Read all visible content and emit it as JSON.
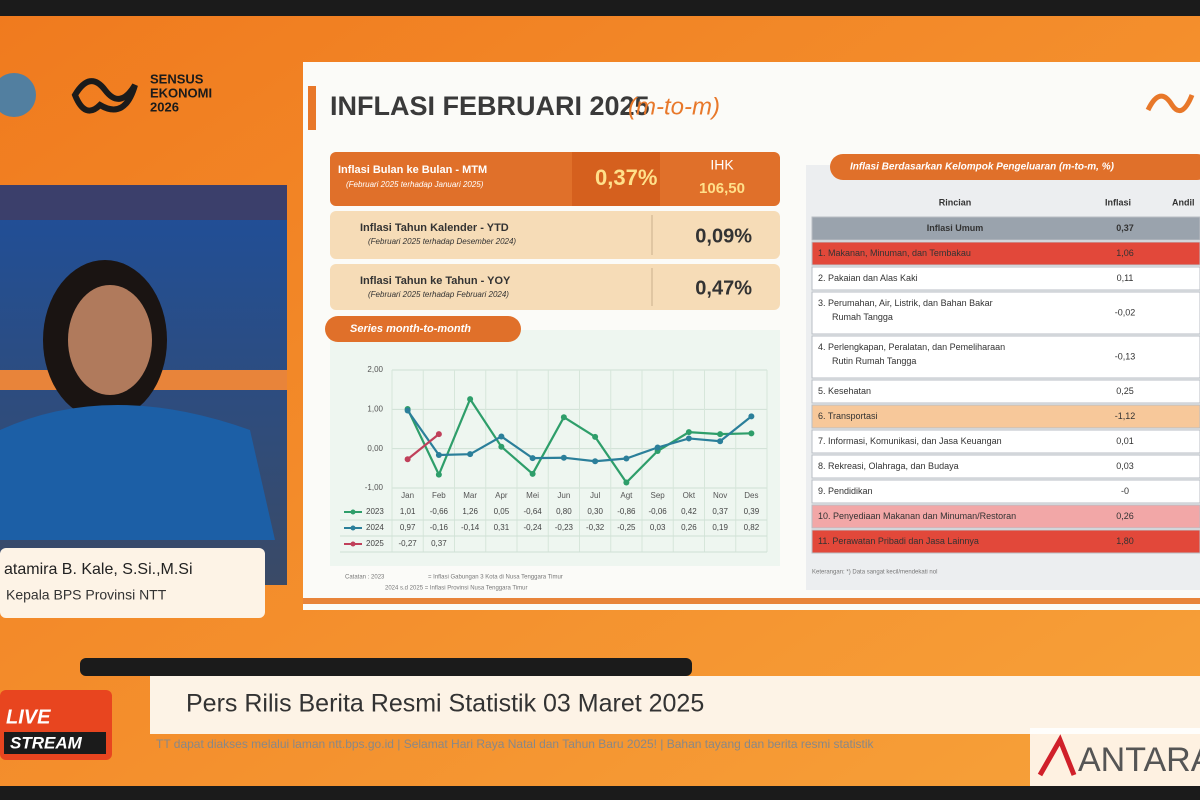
{
  "header": {
    "logo_lines": [
      "SENSUS",
      "EKONOMI",
      "2026"
    ]
  },
  "slide": {
    "title": "INFLASI FEBRUARI 2025",
    "title_suffix": "(m-to-m)",
    "summary": [
      {
        "label": "Inflasi Bulan ke Bulan - MTM",
        "period": "(Februari 2025 terhadap Januari 2025)",
        "value": "0,37%",
        "index_label": "IHK",
        "index_value": "106,50"
      },
      {
        "label": "Inflasi Tahun Kalender - YTD",
        "period": "(Februari 2025 terhadap Desember 2024)",
        "value": "0,09%"
      },
      {
        "label": "Inflasi Tahun ke Tahun - YOY",
        "period": "(Februari 2025 terhadap Februari 2024)",
        "value": "0,47%"
      }
    ],
    "chart": {
      "type": "line",
      "title": "Series month-to-month",
      "categories": [
        "Jan",
        "Feb",
        "Mar",
        "Apr",
        "Mei",
        "Jun",
        "Jul",
        "Agt",
        "Sep",
        "Okt",
        "Nov",
        "Des"
      ],
      "ylim": [
        -1,
        2
      ],
      "yticks": [
        {
          "value": 2,
          "label": "2,00"
        },
        {
          "value": 1,
          "label": "1,00"
        },
        {
          "value": 0,
          "label": "0,00"
        },
        {
          "value": -1,
          "label": "-1,00"
        }
      ],
      "grid": true,
      "series": [
        {
          "name": "2023",
          "color": "#2e9e6a",
          "values": [
            1.01,
            -0.66,
            1.26,
            0.05,
            -0.64,
            0.8,
            0.3,
            -0.86,
            -0.06,
            0.42,
            0.37,
            0.39
          ],
          "value_labels": [
            "1,01",
            "-0,66",
            "1,26",
            "0,05",
            "-0,64",
            "0,80",
            "0,30",
            "-0,86",
            "-0,06",
            "0,42",
            "0,37",
            "0,39"
          ]
        },
        {
          "name": "2024",
          "color": "#2b7f9a",
          "values": [
            0.97,
            -0.16,
            -0.14,
            0.31,
            -0.24,
            -0.23,
            -0.32,
            -0.25,
            0.03,
            0.26,
            0.19,
            0.82
          ],
          "value_labels": [
            "0,97",
            "-0,16",
            "-0,14",
            "0,31",
            "-0,24",
            "-0,23",
            "-0,32",
            "-0,25",
            "0,03",
            "0,26",
            "0,19",
            "0,82"
          ]
        },
        {
          "name": "2025",
          "color": "#c0405a",
          "values": [
            -0.27,
            0.37,
            null,
            null,
            null,
            null,
            null,
            null,
            null,
            null,
            null,
            null
          ],
          "value_labels": [
            "-0,27",
            "0,37",
            null,
            null,
            null,
            null,
            null,
            null,
            null,
            null,
            null,
            null
          ]
        }
      ]
    },
    "chart_note": [
      "Catatan : 2023",
      "= Inflasi Gabungan 3 Kota di Nusa Tenggara Timur",
      "2024 s.d 2025 = Inflasi Provinsi Nusa Tenggara Timur"
    ],
    "table": {
      "title": "Inflasi Berdasarkan Kelompok Pengeluaran (m-to-m, %)",
      "columns": [
        "Rincian",
        "Inflasi",
        "Andil"
      ],
      "rows": [
        {
          "label": "Inflasi Umum",
          "inflasi": "0,37",
          "color": "#9aa3ad"
        },
        {
          "label": "1.  Makanan, Minuman, dan Tembakau",
          "inflasi": "1,06",
          "color": "#e2483a"
        },
        {
          "label": "2.  Pakaian dan Alas Kaki",
          "inflasi": "0,11",
          "color": "#ffffff"
        },
        {
          "label": "3.  Perumahan, Air, Listrik, dan Bahan Bakar Rumah Tangga",
          "inflasi": "-0,02",
          "color": "#ffffff"
        },
        {
          "label": "4.  Perlengkapan, Peralatan, dan Pemeliharaan Rutin Rumah Tangga",
          "inflasi": "-0,13",
          "color": "#ffffff"
        },
        {
          "label": "5.  Kesehatan",
          "inflasi": "0,25",
          "color": "#ffffff"
        },
        {
          "label": "6.  Transportasi",
          "inflasi": "-1,12",
          "color": "#f7c89a"
        },
        {
          "label": "7.  Informasi, Komunikasi, dan Jasa Keuangan",
          "inflasi": "0,01",
          "color": "#ffffff"
        },
        {
          "label": "8.  Rekreasi, Olahraga, dan Budaya",
          "inflasi": "0,03",
          "color": "#ffffff"
        },
        {
          "label": "9.  Pendidikan",
          "inflasi": "-0",
          "color": "#ffffff"
        },
        {
          "label": "10. Penyediaan Makanan dan Minuman/Restoran",
          "inflasi": "0,26",
          "color": "#f2a7a7"
        },
        {
          "label": "11. Perawatan Pribadi dan Jasa Lainnya",
          "inflasi": "1,80",
          "color": "#e2483a"
        }
      ],
      "footnote": "Keterangan: *) Data sangat kecil/mendekati nol"
    }
  },
  "speaker": {
    "name": "atamira B. Kale, S.Si.,M.Si",
    "role": "Kepala BPS Provinsi NTT"
  },
  "banner": {
    "live": "LIVE",
    "stream": "STREAM",
    "headline": "Pers Rilis Berita Resmi Statistik 03 Maret 2025",
    "ticker": "TT dapat diakses melalui laman ntt.bps.go.id | Selamat Hari Raya Natal dan Tahun Baru 2025! | Bahan tayang dan berita resmi statistik",
    "watermark": "ANTARA"
  }
}
